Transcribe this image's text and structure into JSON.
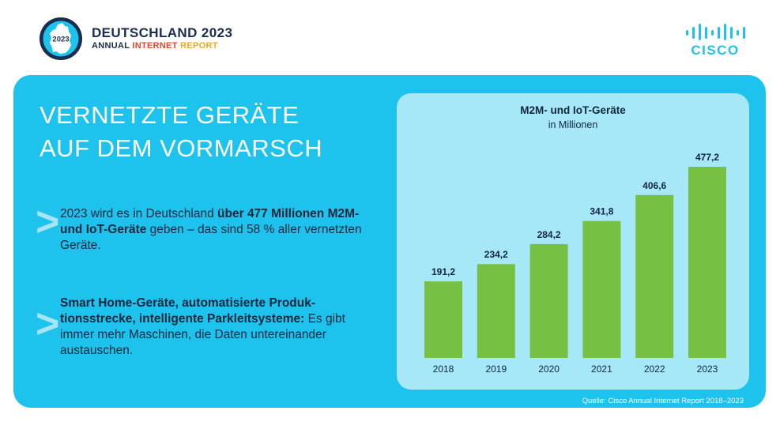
{
  "brand": {
    "badge_year": "2023",
    "title": "DEUTSCHLAND 2023",
    "subtitle_word1": "ANNUAL",
    "subtitle_word2": "INTERNET",
    "subtitle_word3": "REPORT",
    "logo_text": "CISCO"
  },
  "headline": {
    "line1": "VERNETZTE GERÄTE",
    "line2": "AUF DEM VORMARSCH"
  },
  "bullets": [
    {
      "chevron": ">",
      "part1": "2023 wird es in Deutschland ",
      "bold": "über 477 Millionen M2M- und IoT-Geräte",
      "part2": " geben – das sind 58 % aller vernetzten Geräte."
    },
    {
      "chevron": ">",
      "bold": "Smart Home-Geräte, automatisierte Produk-tionsstrecke, intelligente Parkleitsysteme:",
      "part2": " Es gibt immer mehr Maschinen, die Daten untereinander austauschen."
    }
  ],
  "chart_data": {
    "type": "bar",
    "title": "M2M- und IoT-Geräte",
    "subtitle": "in Millionen",
    "categories": [
      "2018",
      "2019",
      "2020",
      "2021",
      "2022",
      "2023"
    ],
    "values": [
      191.2,
      234.2,
      284.2,
      341.8,
      406.6,
      477.2
    ],
    "value_labels": [
      "191,2",
      "234,2",
      "284,2",
      "341,8",
      "406,6",
      "477,2"
    ],
    "ylim": [
      0,
      477.2
    ],
    "grid": false,
    "bar_color": "#76c043"
  },
  "source": "Quelle: Cisco Annual Internet Report 2018–2023",
  "colors": {
    "panel": "#1dc3ed",
    "chart_bg": "#a6e7f8",
    "navy": "#1b2d4f",
    "chevron": "#a6e4f6"
  }
}
